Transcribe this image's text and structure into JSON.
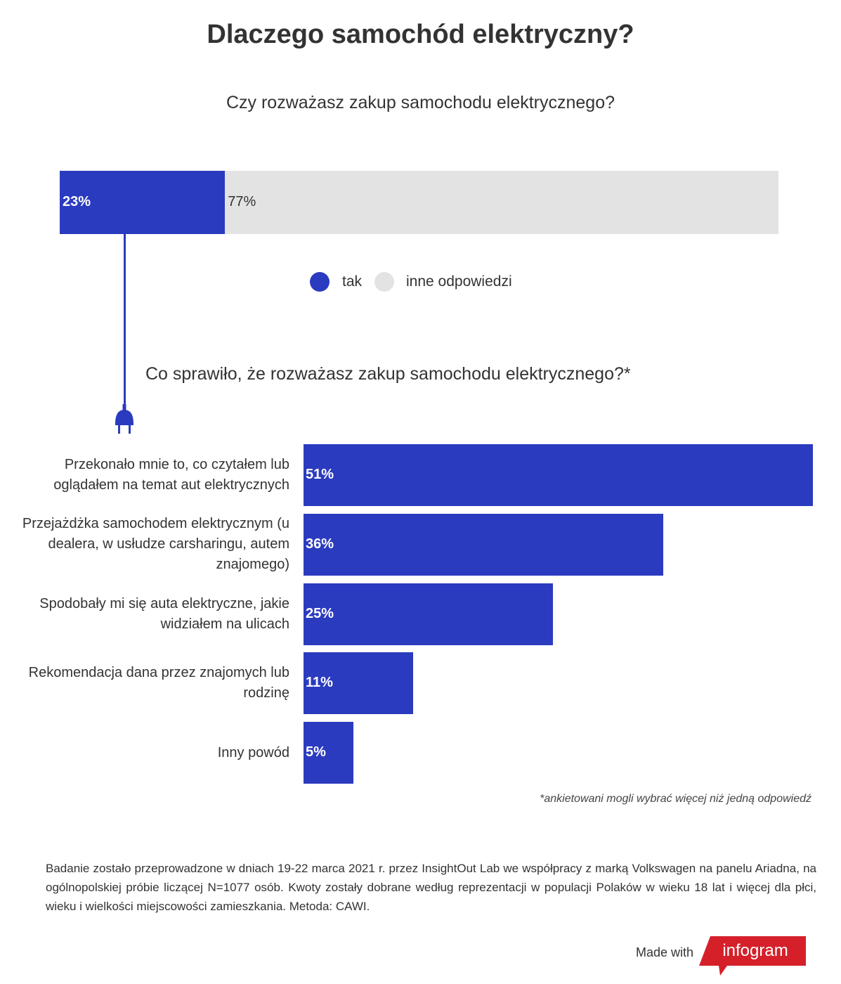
{
  "title": "Dlaczego samochód elektryczny?",
  "chart_data": [
    {
      "type": "bar",
      "stacked": true,
      "orientation": "horizontal",
      "title": "Czy rozważasz zakup samochodu elektrycznego?",
      "series": [
        {
          "name": "tak",
          "value": 23,
          "label": "23%",
          "color": "#2b3bbf"
        },
        {
          "name": "inne odpowiedzi",
          "value": 77,
          "label": "77%",
          "color": "#e3e3e3"
        }
      ],
      "legend": "bottom"
    },
    {
      "type": "bar",
      "orientation": "horizontal",
      "title": "Co sprawiło, że rozważasz zakup samochodu elektrycznego?*",
      "categories": [
        "Przekonało mnie to, co czytałem lub oglądałem na temat aut elektrycznych",
        "Przejażdżka samochodem elektrycznym (u dealera, w usłudze carsharingu, autem znajomego)",
        "Spodobały mi się auta elektryczne, jakie widziałem na ulicach",
        "Rekomendacja dana przez znajomych lub rodzinę",
        "Inny powód"
      ],
      "values": [
        51,
        36,
        25,
        11,
        5
      ],
      "labels": [
        "51%",
        "36%",
        "25%",
        "11%",
        "5%"
      ],
      "color": "#2b3bbf"
    }
  ],
  "note": "*ankietowani mogli wybrać więcej niż jedną odpowiedź",
  "footer": "Badanie zostało przeprowadzone w dniach 19-22 marca 2021 r. przez InsightOut Lab we współpracy z marką Volkswagen na panelu Ariadna, na ogólnopolskiej próbie liczącej N=1077 osób. Kwoty zostały dobrane według reprezentacji w populacji Polaków w wieku 18 lat i więcej dla płci, wieku i wielkości miejscowości zamieszkania. Metoda: CAWI.",
  "made_with": "Made with",
  "brand": "infogram",
  "icons": {
    "plug": "plug-icon"
  }
}
